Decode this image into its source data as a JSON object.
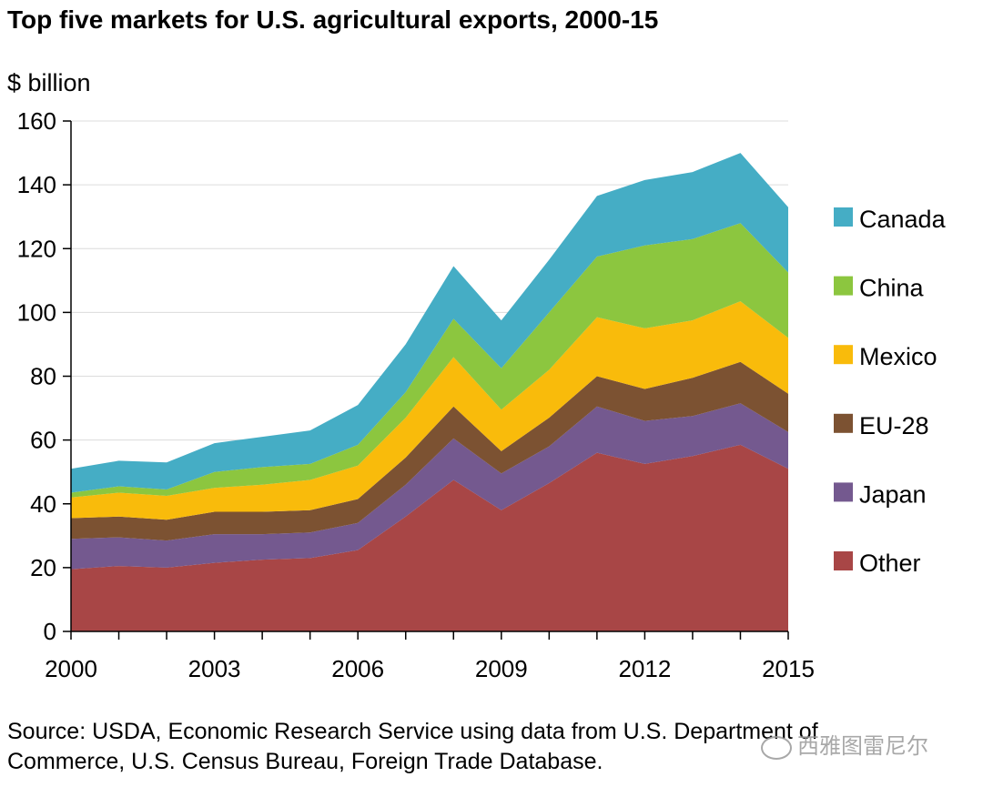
{
  "chart_data": {
    "type": "area",
    "stacked": true,
    "title": "Top five markets for U.S. agricultural exports, 2000-15",
    "ylabel": "$ billion",
    "xlabel": "",
    "ylim": [
      0,
      160
    ],
    "yticks": [
      0,
      20,
      40,
      60,
      80,
      100,
      120,
      140,
      160
    ],
    "xlim": [
      2000,
      2015
    ],
    "xtick_labels": [
      "2000",
      "2003",
      "2006",
      "2009",
      "2012",
      "2015"
    ],
    "x": [
      2000,
      2001,
      2002,
      2003,
      2004,
      2005,
      2006,
      2007,
      2008,
      2009,
      2010,
      2011,
      2012,
      2013,
      2014,
      2015
    ],
    "grid": "horizontal",
    "legend_position": "right",
    "series": [
      {
        "name": "Other",
        "color": "#a84646",
        "values": [
          19.5,
          20.5,
          20.0,
          21.5,
          22.5,
          23.0,
          25.5,
          36.0,
          47.5,
          38.0,
          46.5,
          56.0,
          52.5,
          55.0,
          58.5,
          51.0
        ]
      },
      {
        "name": "Japan",
        "color": "#74598f",
        "values": [
          9.5,
          9.0,
          8.5,
          9.0,
          8.0,
          8.0,
          8.5,
          10.0,
          13.0,
          11.5,
          11.5,
          14.5,
          13.5,
          12.5,
          13.0,
          11.5
        ]
      },
      {
        "name": "EU-28",
        "color": "#7c5232",
        "values": [
          6.5,
          6.5,
          6.5,
          7.0,
          7.0,
          7.0,
          7.5,
          8.5,
          10.0,
          7.0,
          9.0,
          9.5,
          10.0,
          12.0,
          13.0,
          12.0
        ]
      },
      {
        "name": "Mexico",
        "color": "#f9bb0b",
        "values": [
          6.5,
          7.5,
          7.5,
          7.5,
          8.5,
          9.5,
          10.5,
          12.5,
          15.5,
          13.0,
          15.0,
          18.5,
          19.0,
          18.0,
          19.0,
          17.5
        ]
      },
      {
        "name": "China",
        "color": "#8cc63f",
        "values": [
          1.5,
          2.0,
          2.0,
          5.0,
          5.5,
          5.0,
          6.5,
          8.0,
          12.0,
          13.0,
          18.0,
          19.0,
          26.0,
          25.5,
          24.5,
          20.5
        ]
      },
      {
        "name": "Canada",
        "color": "#45adc5",
        "values": [
          7.5,
          8.0,
          8.5,
          9.0,
          9.5,
          10.5,
          12.5,
          15.0,
          16.5,
          15.0,
          16.5,
          19.0,
          20.5,
          21.0,
          22.0,
          20.5
        ]
      }
    ]
  },
  "source": {
    "line1": "Source: USDA, Economic Research Service using data from U.S. Department of",
    "line2": "Commerce, U.S. Census Bureau, Foreign Trade Database."
  },
  "watermark": "西雅图雷尼尔"
}
